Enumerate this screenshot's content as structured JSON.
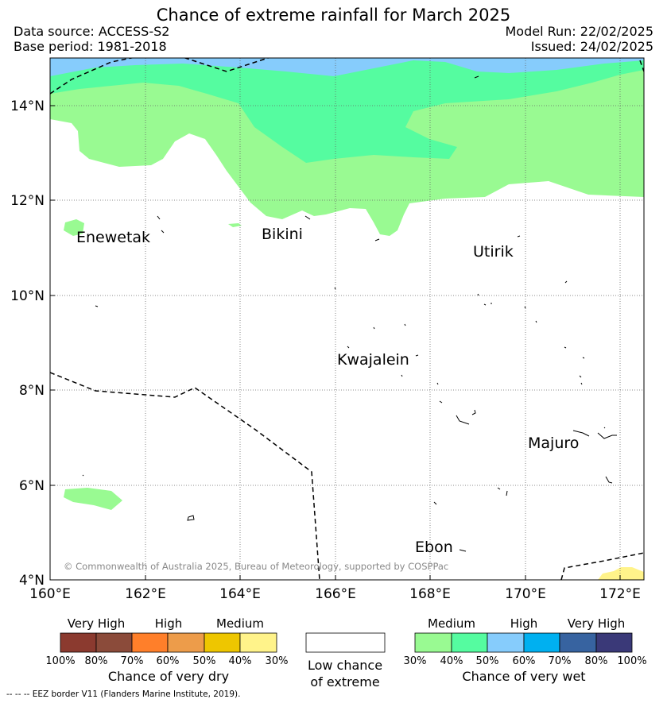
{
  "title": "Chance of extreme rainfall for March 2025",
  "data_source": "Data source: ACCESS-S2",
  "base_period": "Base period: 1981-2018",
  "model_run": "Model Run: 22/02/2025",
  "issued": "Issued: 24/02/2025",
  "map": {
    "x_ticks": [
      "160°E",
      "162°E",
      "164°E",
      "166°E",
      "168°E",
      "170°E",
      "172°E"
    ],
    "y_ticks": [
      "4°N",
      "6°N",
      "8°N",
      "10°N",
      "12°N",
      "14°N"
    ],
    "places": [
      "Enewetak",
      "Bikini",
      "Utirik",
      "Kwajalein",
      "Majuro",
      "Ebon"
    ],
    "copyright": "© Commonwealth of Australia 2025, Bureau of Meteorology, supported by COSPPac",
    "colors": {
      "wet_30_40": "#99fa92",
      "wet_40_50": "#55fca0",
      "wet_50_60": "#86ccfc",
      "dry_30_40": "#fff38a",
      "eez_line": "#000000"
    }
  },
  "dry_legend": {
    "headings": [
      "Very High",
      "High",
      "Medium"
    ],
    "colors": [
      "#8b3a2f",
      "#8b4b3a",
      "#ff7f2a",
      "#ed9c4a",
      "#eec600",
      "#fff38a"
    ],
    "ticks": [
      "100%",
      "80%",
      "70%",
      "60%",
      "50%",
      "40%",
      "30%"
    ],
    "title": "Chance of very dry"
  },
  "low_legend": {
    "line1": "Low chance",
    "line2": "of extreme"
  },
  "wet_legend": {
    "headings": [
      "Medium",
      "High",
      "Very High"
    ],
    "colors": [
      "#99fa92",
      "#55fca0",
      "#86ccfc",
      "#00b0f0",
      "#3763a0",
      "#3a3978"
    ],
    "ticks": [
      "30%",
      "40%",
      "50%",
      "60%",
      "70%",
      "80%",
      "100%"
    ],
    "title": "Chance of very wet"
  },
  "footer": "--  --  -- EEZ border V11 (Flanders Marine Institute, 2019)."
}
